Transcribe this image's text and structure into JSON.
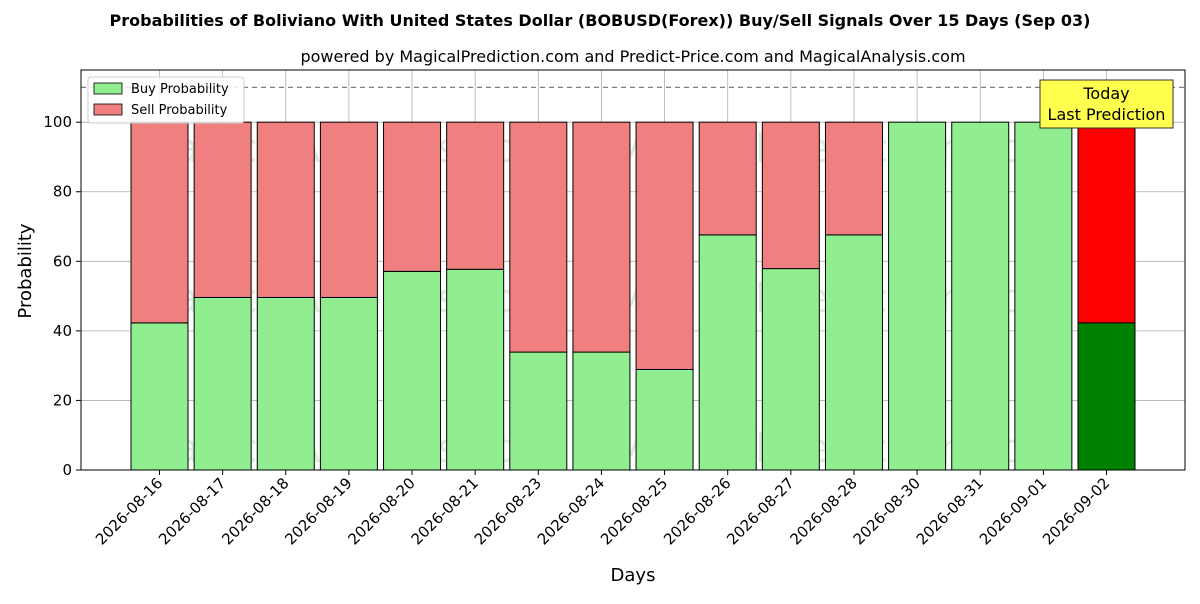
{
  "chart_data": {
    "type": "bar",
    "stacked": true,
    "title": "Probabilities of Boliviano With United States Dollar (BOBUSD(Forex)) Buy/Sell Signals Over 15 Days (Sep 03)",
    "subtitle": "powered by MagicalPrediction.com and Predict-Price.com and MagicalAnalysis.com",
    "xlabel": "Days",
    "ylabel": "Probability",
    "ylim": [
      0,
      115
    ],
    "yticks": [
      0,
      20,
      40,
      60,
      80,
      100
    ],
    "grid": true,
    "reference_line": 110,
    "legend_position": "top-left",
    "categories": [
      "2026-08-16",
      "2026-08-17",
      "2026-08-18",
      "2026-08-19",
      "2026-08-20",
      "2026-08-21",
      "2026-08-23",
      "2026-08-24",
      "2026-08-25",
      "2026-08-26",
      "2026-08-27",
      "2026-08-28",
      "2026-08-30",
      "2026-08-31",
      "2026-09-01",
      "2026-09-02"
    ],
    "series": [
      {
        "name": "Buy Probability",
        "color": "#90ee90",
        "highlight_color": "#008000",
        "values": [
          42.3,
          49.6,
          49.6,
          49.6,
          57.1,
          57.7,
          33.9,
          33.9,
          28.9,
          67.6,
          57.9,
          67.6,
          100,
          100,
          100,
          42.3
        ]
      },
      {
        "name": "Sell Probability",
        "color": "#f08080",
        "highlight_color": "#ff0000",
        "values": [
          57.7,
          50.4,
          50.4,
          50.4,
          42.9,
          42.3,
          66.1,
          66.1,
          71.1,
          32.4,
          42.1,
          32.4,
          0,
          0,
          0,
          57.7
        ]
      }
    ],
    "highlight_index": 15,
    "annotation": {
      "lines": [
        "Today",
        "Last Prediction"
      ],
      "background": "#ffff4d"
    },
    "watermarks": [
      "MagicalAnalysis.com",
      "MagicalPrediction.com"
    ]
  }
}
